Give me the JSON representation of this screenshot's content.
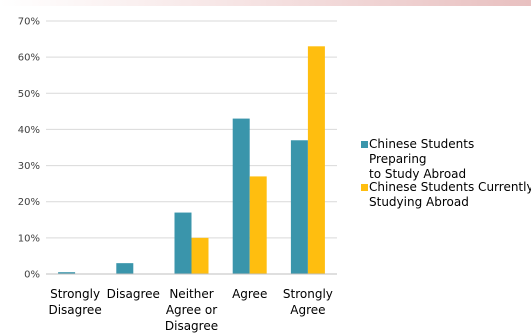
{
  "chart_data": {
    "type": "bar",
    "categories": [
      [
        "Strongly",
        "Disagree"
      ],
      [
        "Disagree"
      ],
      [
        "Neither",
        "Agree or",
        "Disagree"
      ],
      [
        "Agree"
      ],
      [
        "Strongly",
        "Agree"
      ]
    ],
    "series": [
      {
        "name": [
          "Chinese Students Preparing",
          "to Study Abroad"
        ],
        "color": "#3a95ab",
        "values": [
          0.5,
          3,
          17,
          43,
          37
        ]
      },
      {
        "name": [
          "Chinese Students Currently",
          "Studying Abroad"
        ],
        "color": "#ffbe0f",
        "values": [
          0,
          0,
          10,
          27,
          63
        ]
      }
    ],
    "yticks": [
      "0%",
      "10%",
      "20%",
      "30%",
      "40%",
      "50%",
      "60%",
      "70%"
    ],
    "ylim": [
      0,
      70
    ],
    "ytick_step": 10,
    "grid": true,
    "legend_position": "right"
  }
}
